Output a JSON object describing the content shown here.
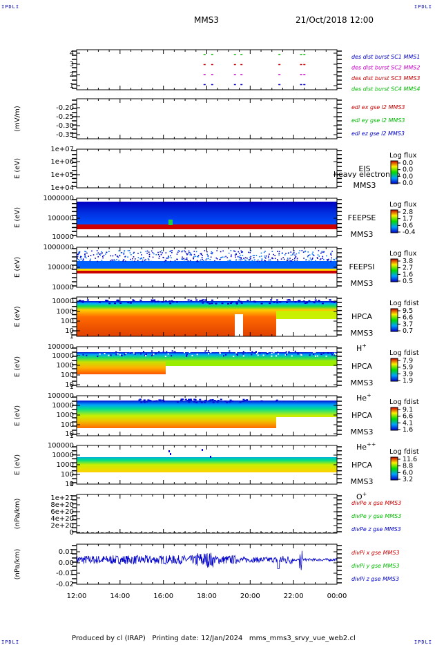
{
  "corner_logo": "IPDLI",
  "header": {
    "spacecraft": "MMS3",
    "datetime": "21/Oct/2018 12:00"
  },
  "footer": "Produced by cl (IRAP)   Printing date: 12/Jan/2024   mms_mms3_srvy_vue_web2.cl",
  "colors": {
    "ink": "#000000",
    "blue": "#0000cc",
    "magenta": "#cc00cc",
    "red": "#cc0000",
    "green": "#00bb00"
  },
  "chart_data": [
    {
      "type": "scatter",
      "panel": "burst",
      "ylabel": "",
      "ytick_labels": [
        "4",
        "3",
        "2",
        "1"
      ],
      "ylim": [
        0.5,
        4.5
      ],
      "xlim_hours": [
        12,
        24
      ],
      "series": [
        {
          "name": "des dist burst SC1 MMS1",
          "color": "#0000cc",
          "y": 1,
          "x_hours": [
            17.85,
            18.2,
            19.25,
            19.55,
            21.3,
            22.3,
            22.45
          ]
        },
        {
          "name": "des dist burst SC2 MMS2",
          "color": "#cc00cc",
          "y": 2,
          "x_hours": [
            17.85,
            18.2,
            19.25,
            19.55,
            21.3,
            22.3,
            22.45
          ]
        },
        {
          "name": "des dist burst SC3 MMS3",
          "color": "#cc0000",
          "y": 3,
          "x_hours": [
            17.85,
            18.2,
            19.25,
            19.55,
            21.3,
            22.3,
            22.45
          ]
        },
        {
          "name": "des dist burst SC4 MMS4",
          "color": "#00bb00",
          "y": 4,
          "x_hours": [
            17.85,
            18.2,
            19.25,
            19.55,
            21.3,
            22.3,
            22.45
          ]
        }
      ]
    },
    {
      "type": "line",
      "panel": "edi",
      "ylabel": "(mV/m)",
      "ytick_labels": [
        "-0.20",
        "-0.25",
        "-0.30",
        "-0.35"
      ],
      "ylim": [
        -0.38,
        -0.15
      ],
      "series": [
        {
          "name": "edi ex gse l2 MMS3",
          "color": "#cc0000"
        },
        {
          "name": "edi ey gse l2 MMS3",
          "color": "#00bb00"
        },
        {
          "name": "edi ez gse l2 MMS3",
          "color": "#0000cc"
        }
      ]
    },
    {
      "type": "heatmap",
      "panel": "EIS",
      "ylabel": "E (eV)",
      "ytick_labels": [
        "1e+07",
        "1e+06",
        "1e+05",
        "1e+04"
      ],
      "label": "EIS",
      "sublabel": "MMS3",
      "extra_label": "heavy electron to",
      "colorbar": {
        "title": "Log flux",
        "ticks": [
          "0.0",
          "0.0",
          "0.0",
          "0.0"
        ]
      }
    },
    {
      "type": "heatmap",
      "panel": "FEEPSE",
      "ylabel": "E (eV)",
      "ytick_labels": [
        "1000000",
        "100000",
        "10000"
      ],
      "label": "FEEPSE",
      "sublabel": "MMS3",
      "colorbar": {
        "title": "Log flux",
        "ticks": [
          "2.8",
          "1.7",
          "0.6",
          "-0.4"
        ]
      }
    },
    {
      "type": "heatmap",
      "panel": "FEEPSI",
      "ylabel": "E (eV)",
      "ytick_labels": [
        "1000000",
        "100000",
        "10000"
      ],
      "label": "FEEPSI",
      "sublabel": "MMS3",
      "colorbar": {
        "title": "Log flux",
        "ticks": [
          "3.8",
          "2.7",
          "1.6",
          "0.5"
        ]
      }
    },
    {
      "type": "heatmap",
      "panel": "HPCA H+",
      "ylabel": "E (eV)",
      "ytick_labels": [
        "10000",
        "1000",
        "100",
        "10",
        "1"
      ],
      "label": "HPCA",
      "sublabel": "MMS3",
      "species": "H",
      "charge": "+",
      "colorbar": {
        "title": "Log fdist",
        "ticks": [
          "9.5",
          "6.6",
          "3.7",
          "0.7"
        ]
      }
    },
    {
      "type": "heatmap",
      "panel": "HPCA He+",
      "ylabel": "E (eV)",
      "ytick_labels": [
        "100000",
        "10000",
        "1000",
        "100",
        "10",
        "1"
      ],
      "label": "HPCA",
      "sublabel": "MMS3",
      "species": "He",
      "charge": "+",
      "colorbar": {
        "title": "Log fdist",
        "ticks": [
          "7.9",
          "5.9",
          "3.9",
          "1.9"
        ]
      }
    },
    {
      "type": "heatmap",
      "panel": "HPCA He++",
      "ylabel": "E (eV)",
      "ytick_labels": [
        "100000",
        "10000",
        "1000",
        "100",
        "10",
        "1"
      ],
      "label": "HPCA",
      "sublabel": "MMS3",
      "species": "He",
      "charge": "++",
      "colorbar": {
        "title": "Log fdist",
        "ticks": [
          "9.1",
          "6.6",
          "4.1",
          "1.6"
        ]
      }
    },
    {
      "type": "heatmap",
      "panel": "HPCA O+",
      "ylabel": "E (eV)",
      "ytick_labels": [
        "100000",
        "10000",
        "1000",
        "100",
        "10",
        "1"
      ],
      "label": "HPCA",
      "sublabel": "MMS3",
      "species": "O",
      "charge": "+",
      "colorbar": {
        "title": "Log fdist",
        "ticks": [
          "11.6",
          "8.8",
          "6.0",
          "3.2"
        ]
      }
    },
    {
      "type": "line",
      "panel": "divPe",
      "ylabel": "(nPa/km)",
      "ytick_labels": [
        "1e+21",
        "8e+20",
        "6e+20",
        "4e+20",
        "2e+20",
        "0"
      ],
      "ylim": [
        -1e+19,
        1.1e+21
      ],
      "series": [
        {
          "name": "divPe x gse MMS3",
          "color": "#cc0000"
        },
        {
          "name": "divPe y gse MMS3",
          "color": "#00bb00"
        },
        {
          "name": "divPe z gse MMS3",
          "color": "#0000cc"
        }
      ]
    },
    {
      "type": "line",
      "panel": "divPi",
      "ylabel": "(nPa/km)",
      "ytick_labels": [
        "0.01",
        "0.00",
        "-0.01",
        "-0.02"
      ],
      "ylim": [
        -0.022,
        0.014
      ],
      "series": [
        {
          "name": "divPi x gse MMS3",
          "color": "#cc0000"
        },
        {
          "name": "divPi y gse MMS3",
          "color": "#00bb00"
        },
        {
          "name": "divPi z gse MMS3",
          "color": "#0000cc"
        }
      ]
    }
  ],
  "x_axis": {
    "tick_labels": [
      "12:00",
      "14:00",
      "16:00",
      "18:00",
      "20:00",
      "22:00",
      "00:00"
    ],
    "xlim_hours": [
      12,
      24
    ]
  }
}
